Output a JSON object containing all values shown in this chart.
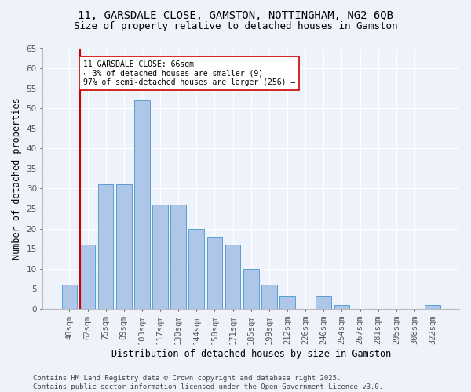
{
  "title": "11, GARSDALE CLOSE, GAMSTON, NOTTINGHAM, NG2 6QB",
  "subtitle": "Size of property relative to detached houses in Gamston",
  "xlabel": "Distribution of detached houses by size in Gamston",
  "ylabel": "Number of detached properties",
  "categories": [
    "48sqm",
    "62sqm",
    "75sqm",
    "89sqm",
    "103sqm",
    "117sqm",
    "130sqm",
    "144sqm",
    "158sqm",
    "171sqm",
    "185sqm",
    "199sqm",
    "212sqm",
    "226sqm",
    "240sqm",
    "254sqm",
    "267sqm",
    "281sqm",
    "295sqm",
    "308sqm",
    "322sqm"
  ],
  "values": [
    6,
    16,
    31,
    31,
    52,
    26,
    26,
    20,
    18,
    16,
    10,
    6,
    3,
    0,
    3,
    1,
    0,
    0,
    0,
    0,
    1
  ],
  "bar_color": "#aec6e8",
  "bar_edge_color": "#5a9fd4",
  "vline_x_index": 1,
  "vline_color": "#cc0000",
  "annotation_text": "11 GARSDALE CLOSE: 66sqm\n← 3% of detached houses are smaller (9)\n97% of semi-detached houses are larger (256) →",
  "annotation_box_color": "#ffffff",
  "annotation_box_edge": "#cc0000",
  "ylim": [
    0,
    65
  ],
  "yticks": [
    0,
    5,
    10,
    15,
    20,
    25,
    30,
    35,
    40,
    45,
    50,
    55,
    60,
    65
  ],
  "bg_color": "#eef2fa",
  "plot_bg_color": "#eef2fa",
  "footer": "Contains HM Land Registry data © Crown copyright and database right 2025.\nContains public sector information licensed under the Open Government Licence v3.0.",
  "title_fontsize": 10,
  "subtitle_fontsize": 9,
  "axis_label_fontsize": 8.5,
  "tick_fontsize": 7.5,
  "footer_fontsize": 6.5
}
